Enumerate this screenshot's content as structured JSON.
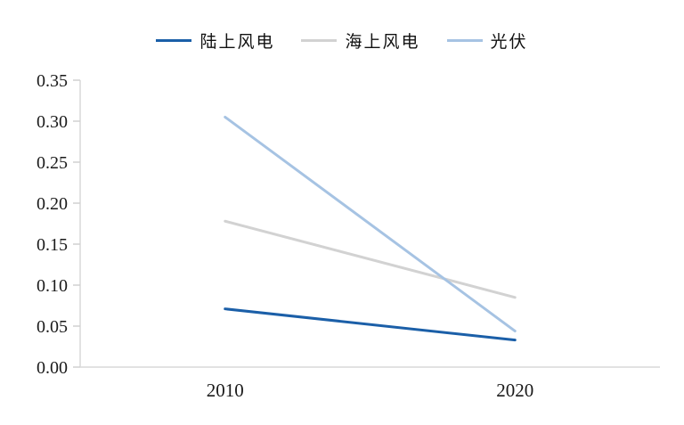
{
  "chart_data": {
    "type": "line",
    "categories": [
      "2010",
      "2020"
    ],
    "series": [
      {
        "name": "陆上风电",
        "values": [
          0.071,
          0.033
        ],
        "color": "#1b5fa8"
      },
      {
        "name": "海上风电",
        "values": [
          0.178,
          0.085
        ],
        "color": "#d2d2d2"
      },
      {
        "name": "光伏",
        "values": [
          0.305,
          0.044
        ],
        "color": "#a6c3e3"
      }
    ],
    "title": "",
    "xlabel": "",
    "ylabel": "",
    "ylim": [
      0,
      0.35
    ],
    "ytick_step": 0.05,
    "ytick_labels": [
      "0.00",
      "0.05",
      "0.10",
      "0.15",
      "0.20",
      "0.25",
      "0.30",
      "0.35"
    ],
    "grid": false,
    "legend_position": "top",
    "axis_color": "#d9d9d9",
    "tick_color": "#d0d0d0",
    "tick_label_color": "#1a1a1a"
  },
  "legend": {
    "items": [
      {
        "label": "陆上风电"
      },
      {
        "label": "海上风电"
      },
      {
        "label": "光伏"
      }
    ]
  }
}
